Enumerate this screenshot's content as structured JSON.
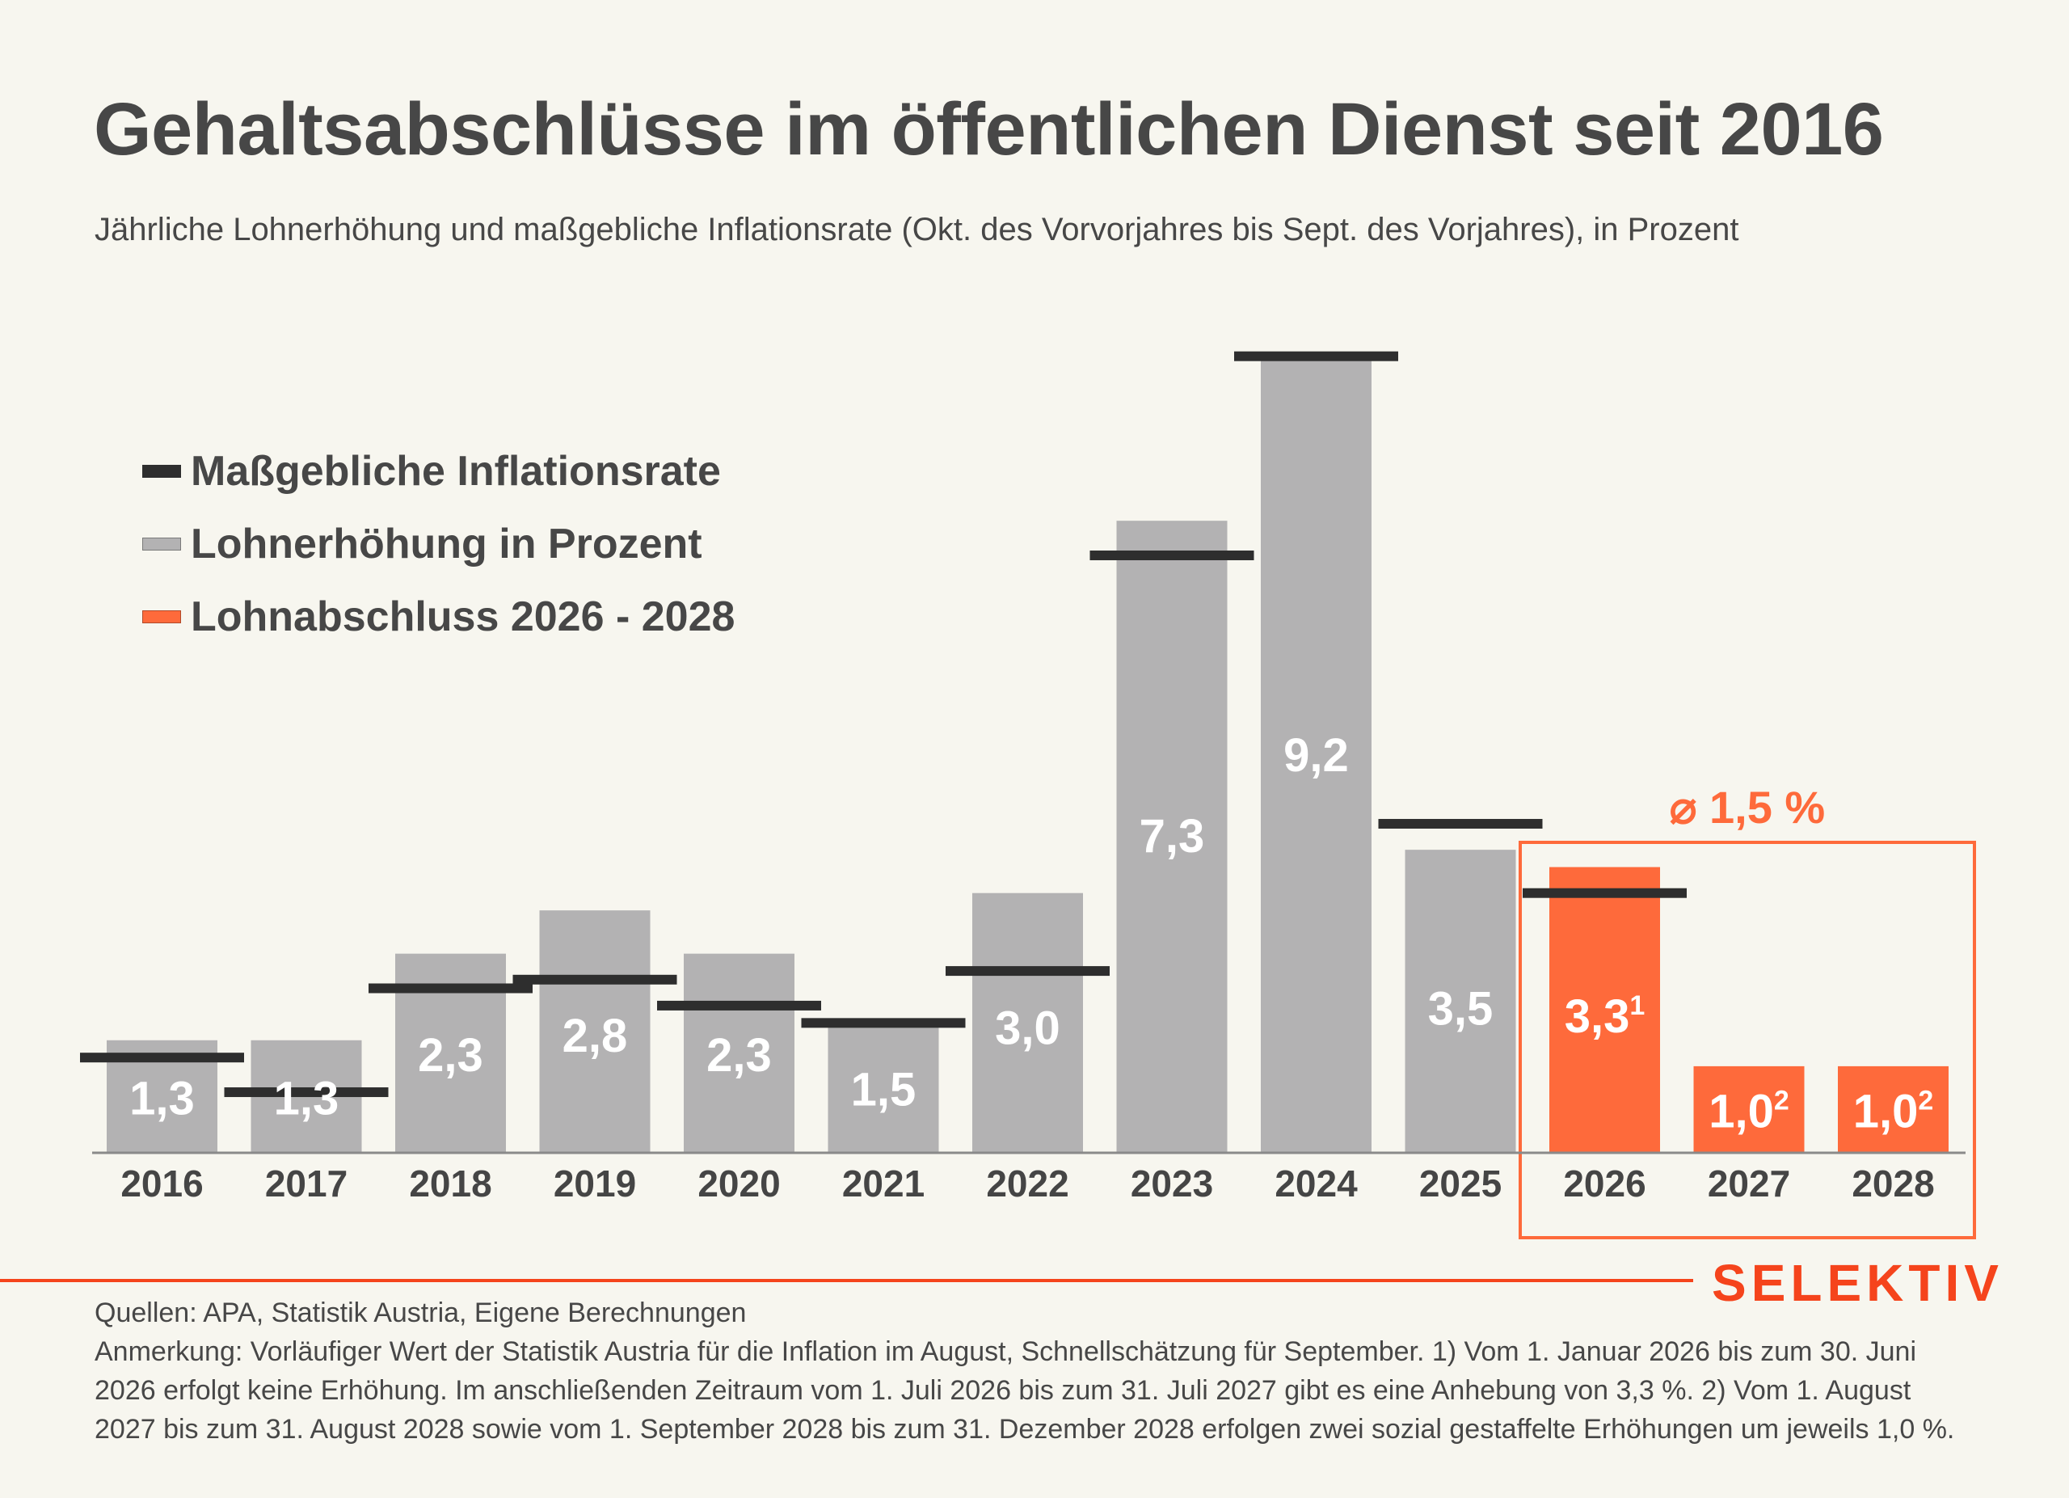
{
  "header": {
    "title": "Gehaltsabschlüsse im öffentlichen Dienst seit 2016",
    "subtitle": "Jährliche Lohnerhöhung und maßgebliche Inflationsrate (Okt. des Vorvorjahres bis Sept. des Vorjahres), in Prozent"
  },
  "legend": [
    {
      "label": "Maßgebliche Inflationsrate",
      "color": "#2e2e2e"
    },
    {
      "label": "Lohnerhöhung in Prozent",
      "color": "#b3b2b3"
    },
    {
      "label": "Lohnabschluss 2026 - 2028",
      "color": "#fe6a3b"
    }
  ],
  "colors": {
    "background": "#f7f6ef",
    "bar_grey": "#b3b2b3",
    "bar_orange": "#fe6a3b",
    "inflation_line": "#2e2e2e",
    "text": "#474747",
    "brand": "#f5441c"
  },
  "chart_data": {
    "type": "bar",
    "title": "Gehaltsabschlüsse im öffentlichen Dienst seit 2016",
    "xlabel": "",
    "ylabel": "Prozent",
    "ylim": [
      0,
      10
    ],
    "grid": false,
    "legend_position": "top-left",
    "categories": [
      "2016",
      "2017",
      "2018",
      "2019",
      "2020",
      "2021",
      "2022",
      "2023",
      "2024",
      "2025",
      "2026",
      "2027",
      "2028"
    ],
    "series": [
      {
        "name": "Lohnerhöhung in Prozent",
        "type": "bar",
        "values": [
          1.3,
          1.3,
          2.3,
          2.8,
          2.3,
          1.5,
          3.0,
          7.3,
          9.2,
          3.5,
          3.3,
          1.0,
          1.0
        ],
        "labels": [
          "1,3",
          "1,3",
          "2,3",
          "2,8",
          "2,3",
          "1,5",
          "3,0",
          "7,3",
          "9,2",
          "3,5",
          "3,3",
          "1,0",
          "1,0"
        ],
        "label_superscripts": [
          "",
          "",
          "",
          "",
          "",
          "",
          "",
          "",
          "",
          "",
          "1",
          "2",
          "2"
        ],
        "highlight": [
          false,
          false,
          false,
          false,
          false,
          false,
          false,
          false,
          false,
          false,
          true,
          true,
          true
        ]
      },
      {
        "name": "Maßgebliche Inflationsrate",
        "type": "marker-line",
        "values": [
          1.1,
          0.7,
          1.9,
          2.0,
          1.7,
          1.5,
          2.1,
          6.9,
          9.2,
          3.8,
          3.0,
          null,
          null
        ]
      }
    ],
    "annotations": [
      {
        "text": "⌀ 1,5 %",
        "applies_to": [
          "2026",
          "2027",
          "2028"
        ],
        "type": "highlight-box"
      }
    ]
  },
  "footer": {
    "brand": "SELEKTIV",
    "sources": "Quellen: APA, Statistik Austria, Eigene Berechnungen",
    "note": "Anmerkung: Vorläufiger Wert der Statistik Austria für die Inflation im August, Schnellschätzung für September. 1) Vom 1. Januar 2026 bis zum 30. Juni 2026 erfolgt keine Erhöhung. Im anschließenden Zeitraum vom 1. Juli 2026 bis zum 31. Juli 2027 gibt es eine Anhebung von 3,3 %. 2) Vom 1. August 2027 bis zum 31. August 2028 sowie vom 1. September 2028 bis zum 31. Dezember 2028 erfolgen zwei sozial gestaffelte Erhöhungen um jeweils 1,0 %."
  }
}
